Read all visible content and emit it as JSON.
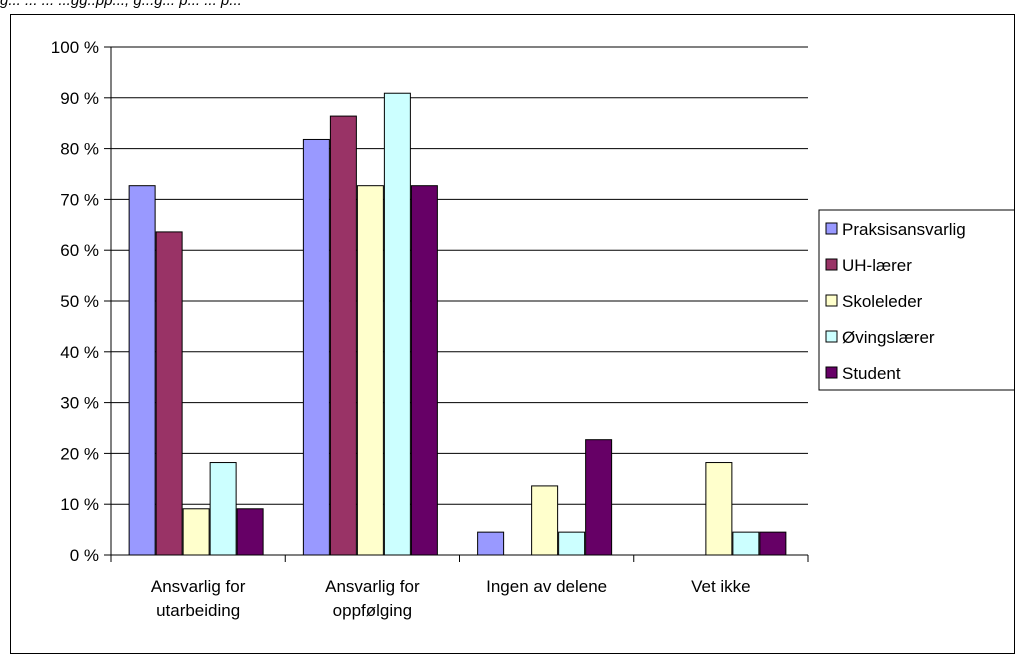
{
  "caption": "g... ... ... ...gg..pp..., g...g... p... ... p...",
  "chart_data": {
    "type": "bar",
    "categories": [
      [
        "Ansvarlig for",
        "utarbeiding"
      ],
      [
        "Ansvarlig for",
        "oppfølging"
      ],
      [
        "Ingen av delene"
      ],
      [
        "Vet ikke"
      ]
    ],
    "series": [
      {
        "name": "Praksisansvarlig",
        "color": "#9999ff",
        "values": [
          72.7,
          81.8,
          4.5,
          0
        ]
      },
      {
        "name": "UH-lærer",
        "color": "#993366",
        "values": [
          63.6,
          86.4,
          0,
          0
        ]
      },
      {
        "name": "Skoleleder",
        "color": "#ffffcc",
        "values": [
          9.1,
          72.7,
          13.6,
          18.2
        ]
      },
      {
        "name": "Øvingslærer",
        "color": "#ccffff",
        "values": [
          18.2,
          90.9,
          4.5,
          4.5
        ]
      },
      {
        "name": "Student",
        "color": "#660066",
        "values": [
          9.1,
          72.7,
          22.7,
          4.5
        ]
      }
    ],
    "ylim": [
      0,
      100
    ],
    "yticks": [
      "0 %",
      "10 %",
      "20 %",
      "30 %",
      "40 %",
      "50 %",
      "60 %",
      "70 %",
      "80 %",
      "90 %",
      "100 %"
    ],
    "grid": true,
    "legend": "right"
  }
}
